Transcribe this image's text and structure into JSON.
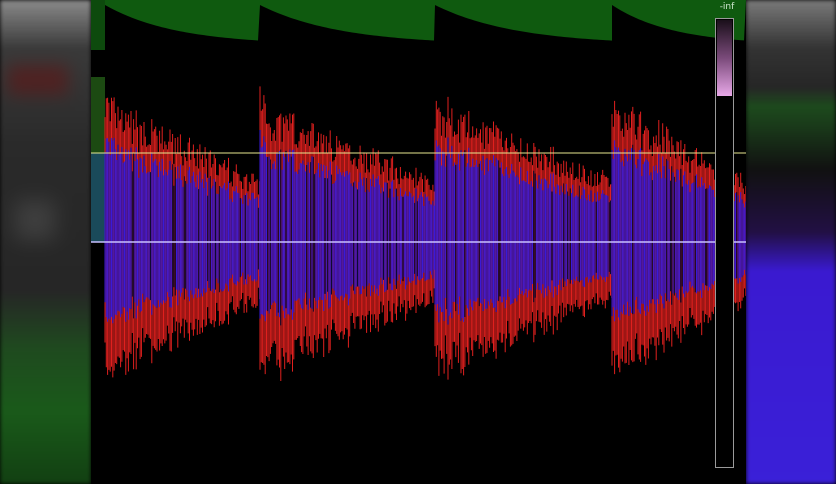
{
  "meter": {
    "label": "-inf",
    "level_percent": 17
  },
  "colors": {
    "envelope": "#0f5a0f",
    "waveform_outer": "#e0201e",
    "waveform_inner": "#3a1ad8",
    "threshold_line": "#e8e890",
    "center_line": "#c8c0ff",
    "meter_fill": "#e8a8e8"
  },
  "waveform": {
    "transient_count": 4
  }
}
